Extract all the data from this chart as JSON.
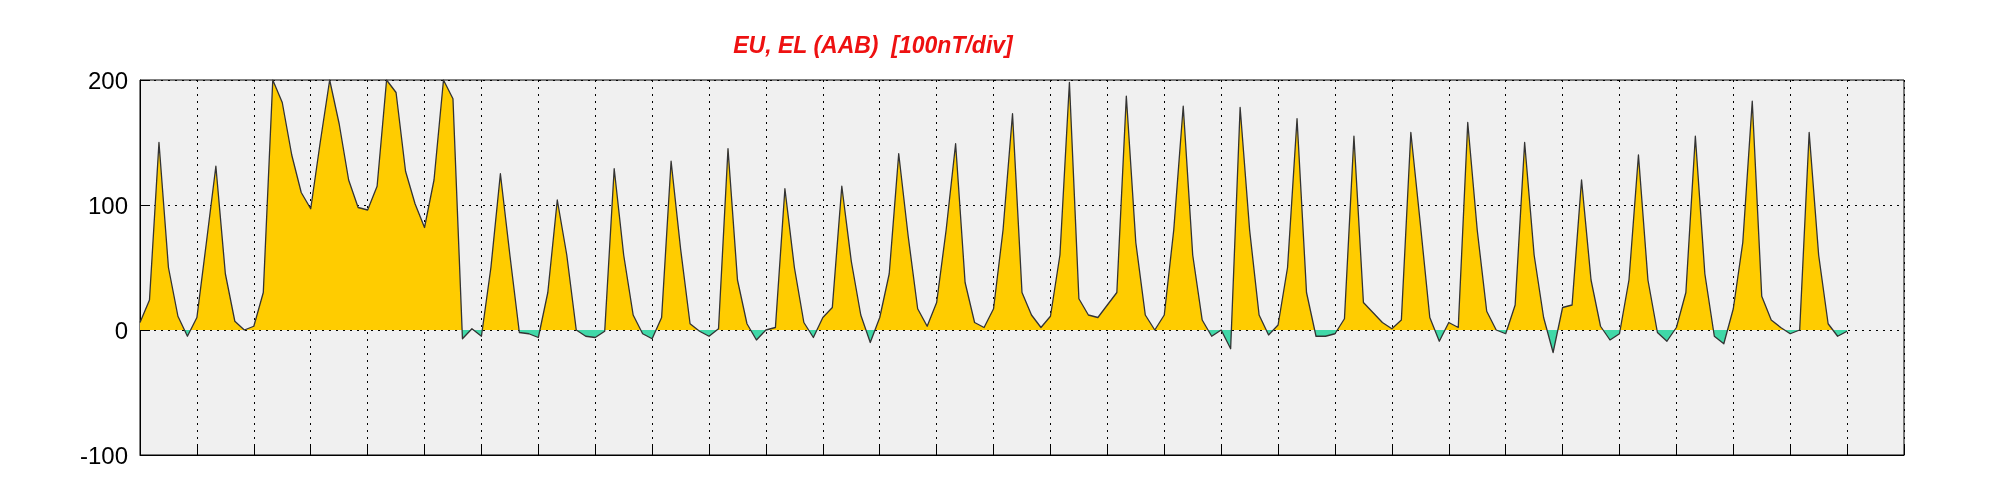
{
  "chart_data": {
    "type": "area",
    "title": "EU, EL (AAB)  [100nT/div]",
    "categories": [
      null,
      null,
      null,
      null,
      null,
      null,
      null,
      null,
      null,
      null,
      null,
      null,
      null,
      null,
      null,
      null,
      null,
      null,
      null,
      null,
      null,
      null,
      null,
      null,
      null,
      null,
      null,
      null,
      null,
      null,
      null,
      null,
      null,
      null,
      null,
      null,
      null,
      null,
      null,
      null,
      null,
      null,
      null,
      null,
      null,
      null,
      null,
      null,
      null,
      null,
      null,
      null,
      null,
      null,
      null,
      null,
      null,
      null,
      null,
      null,
      null,
      null,
      null,
      null,
      null,
      null,
      null,
      null,
      null,
      null,
      null,
      null,
      null,
      null,
      null,
      null,
      null,
      null,
      null,
      null,
      null,
      null,
      null,
      null,
      null,
      null,
      null,
      null,
      null,
      null,
      null,
      null,
      null,
      null,
      null,
      null,
      null,
      null,
      null,
      null,
      null,
      null,
      null,
      null,
      null,
      null,
      null,
      null,
      null,
      null,
      null,
      null,
      null,
      null,
      null,
      null,
      null,
      null,
      null,
      null,
      null,
      null,
      null,
      null,
      null,
      null,
      null,
      null,
      null,
      null,
      null,
      null,
      null,
      null,
      null,
      null,
      null,
      null,
      null,
      null,
      null,
      null,
      null,
      null,
      null,
      null,
      null,
      null,
      null,
      null,
      null,
      null,
      null,
      null,
      null,
      null,
      null,
      null,
      null,
      null,
      null,
      null,
      null,
      null,
      null,
      null,
      null,
      null,
      null,
      null,
      null,
      null,
      null,
      null,
      null,
      null,
      null,
      null,
      null,
      null,
      null
    ],
    "ylim": [
      -100,
      200
    ],
    "yticks": [
      -100,
      0,
      100,
      200
    ],
    "tick_labels": "y",
    "grid": true,
    "series": [
      {
        "color": "#333333",
        "values": [
          6,
          24,
          150,
          50,
          11,
          -5,
          10,
          70,
          131,
          45,
          7,
          0,
          3,
          30,
          200,
          182,
          140,
          110,
          97,
          150,
          200,
          165,
          120,
          98,
          96,
          115,
          200,
          190,
          127,
          101,
          82,
          120,
          200,
          185,
          -7,
          1,
          -5,
          50,
          125,
          60,
          -2,
          -3,
          -6,
          30,
          104,
          60,
          0,
          -5,
          -6,
          -1,
          129,
          60,
          12,
          -3,
          -7,
          10,
          135,
          65,
          5,
          -1,
          -5,
          1,
          145,
          40,
          5,
          -8,
          0,
          2,
          113,
          50,
          6,
          -6,
          10,
          18,
          115,
          55,
          12,
          -10,
          10,
          45,
          141,
          75,
          17,
          3,
          22,
          80,
          149,
          38,
          6,
          2,
          17,
          80,
          173,
          30,
          12,
          2,
          11,
          60,
          198,
          25,
          12,
          10,
          20,
          30,
          187,
          70,
          12,
          0,
          12,
          80,
          179,
          60,
          8,
          -5,
          0,
          -15,
          178,
          80,
          12,
          -4,
          4,
          50,
          169,
          30,
          -5,
          -5,
          -3,
          9,
          155,
          22,
          14,
          6,
          1,
          8,
          158,
          85,
          10,
          -9,
          6,
          2,
          166,
          80,
          15,
          0,
          -3,
          20,
          150,
          60,
          10,
          -18,
          18,
          20,
          120,
          40,
          3,
          -8,
          -3,
          40,
          140,
          40,
          -2,
          -9,
          2,
          30,
          155,
          45,
          -5,
          -11,
          17,
          70,
          183,
          27,
          8,
          2,
          -3,
          0,
          158,
          60,
          5,
          -5,
          -1
        ]
      }
    ]
  }
}
